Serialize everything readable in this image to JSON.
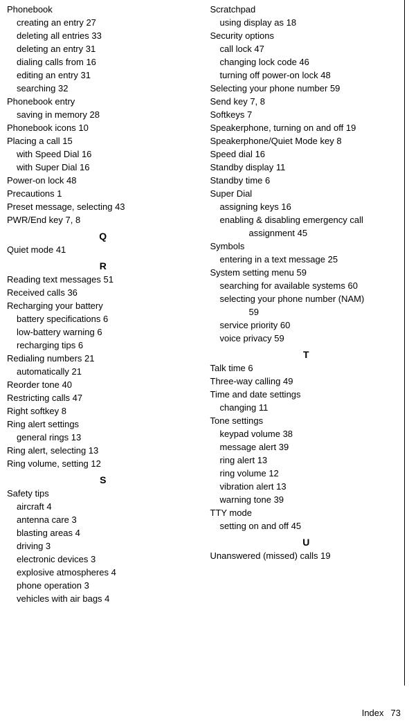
{
  "footer": {
    "label": "Index",
    "page": "73"
  },
  "left": [
    {
      "cls": "main",
      "text": "Phonebook"
    },
    {
      "cls": "sub",
      "label": "creating an entry",
      "pg": "27"
    },
    {
      "cls": "sub",
      "label": "deleting all entries",
      "pg": "33"
    },
    {
      "cls": "sub",
      "label": "deleting an entry",
      "pg": "31"
    },
    {
      "cls": "sub",
      "label": "dialing calls from",
      "pg": "16"
    },
    {
      "cls": "sub",
      "label": "editing an entry",
      "pg": "31"
    },
    {
      "cls": "sub",
      "label": "searching",
      "pg": "32"
    },
    {
      "cls": "main",
      "text": "Phonebook entry"
    },
    {
      "cls": "sub",
      "label": "saving in memory",
      "pg": "28"
    },
    {
      "cls": "main",
      "label": "Phonebook icons",
      "pg": "10"
    },
    {
      "cls": "main",
      "label": "Placing a call",
      "pg": "15"
    },
    {
      "cls": "sub",
      "label": "with Speed Dial",
      "pg": "16"
    },
    {
      "cls": "sub",
      "label": "with Super Dial",
      "pg": "16"
    },
    {
      "cls": "main",
      "label": "Power-on lock",
      "pg": "48"
    },
    {
      "cls": "main",
      "label": "Precautions",
      "pg": "1"
    },
    {
      "cls": "main",
      "label": "Preset message, selecting",
      "pg": "43"
    },
    {
      "cls": "main",
      "label": "PWR/End key",
      "pg": "7, 8"
    },
    {
      "cls": "letter",
      "text": "Q"
    },
    {
      "cls": "main",
      "label": "Quiet mode",
      "pg": "41"
    },
    {
      "cls": "letter",
      "text": "R"
    },
    {
      "cls": "main",
      "label": "Reading text messages",
      "pg": "51"
    },
    {
      "cls": "main",
      "label": "Received calls",
      "pg": "36"
    },
    {
      "cls": "main",
      "text": "Recharging your battery"
    },
    {
      "cls": "sub",
      "label": "battery specifications",
      "pg": "6"
    },
    {
      "cls": "sub",
      "label": "low-battery warning",
      "pg": "6"
    },
    {
      "cls": "sub",
      "label": "recharging tips",
      "pg": "6"
    },
    {
      "cls": "main",
      "label": "Redialing numbers",
      "pg": "21"
    },
    {
      "cls": "sub",
      "label": "automatically",
      "pg": "21"
    },
    {
      "cls": "main",
      "label": "Reorder tone",
      "pg": "40"
    },
    {
      "cls": "main",
      "label": "Restricting calls",
      "pg": "47"
    },
    {
      "cls": "main",
      "label": "Right softkey",
      "pg": "8"
    },
    {
      "cls": "main",
      "text": "Ring alert settings"
    },
    {
      "cls": "sub",
      "label": "general rings",
      "pg": "13"
    },
    {
      "cls": "main",
      "label": "Ring alert, selecting",
      "pg": "13"
    },
    {
      "cls": "main",
      "label": "Ring volume, setting",
      "pg": "12"
    },
    {
      "cls": "letter",
      "text": "S"
    },
    {
      "cls": "main",
      "text": "Safety tips"
    },
    {
      "cls": "sub",
      "label": "aircraft",
      "pg": "4"
    },
    {
      "cls": "sub",
      "label": "antenna care",
      "pg": "3"
    },
    {
      "cls": "sub",
      "label": "blasting areas",
      "pg": "4"
    },
    {
      "cls": "sub",
      "label": "driving",
      "pg": "3"
    },
    {
      "cls": "sub",
      "label": "electronic devices",
      "pg": "3"
    },
    {
      "cls": "sub",
      "label": "explosive atmospheres",
      "pg": "4"
    },
    {
      "cls": "sub",
      "label": "phone operation",
      "pg": "3"
    },
    {
      "cls": "sub",
      "label": "vehicles with air bags",
      "pg": "4"
    }
  ],
  "right": [
    {
      "cls": "main",
      "text": "Scratchpad"
    },
    {
      "cls": "sub",
      "label": "using display as",
      "pg": "18"
    },
    {
      "cls": "main",
      "text": "Security options"
    },
    {
      "cls": "sub",
      "label": "call lock",
      "pg": "47"
    },
    {
      "cls": "sub",
      "label": "changing lock code",
      "pg": "46"
    },
    {
      "cls": "sub",
      "label": "turning off power-on lock",
      "pg": "48"
    },
    {
      "cls": "main",
      "label": "Selecting your phone number",
      "pg": "59"
    },
    {
      "cls": "main",
      "label": "Send key",
      "pg": "7, 8"
    },
    {
      "cls": "main",
      "label": "Softkeys",
      "pg": "7"
    },
    {
      "cls": "main",
      "label": "Speakerphone, turning on and off",
      "pg": "19"
    },
    {
      "cls": "main",
      "label": "Speakerphone/Quiet Mode key",
      "pg": "8"
    },
    {
      "cls": "main",
      "label": "Speed dial",
      "pg": "16"
    },
    {
      "cls": "main",
      "label": "Standby display",
      "pg": "11"
    },
    {
      "cls": "main",
      "label": "Standby time",
      "pg": "6"
    },
    {
      "cls": "main",
      "text": "Super Dial"
    },
    {
      "cls": "sub",
      "label": "assigning keys",
      "pg": "16"
    },
    {
      "cls": "sub",
      "text": "enabling & disabling emergency call"
    },
    {
      "cls": "subsub",
      "label": "assignment",
      "pg": "45"
    },
    {
      "cls": "main",
      "text": "Symbols"
    },
    {
      "cls": "sub",
      "label": "entering in a text message",
      "pg": "25"
    },
    {
      "cls": "main",
      "label": "System setting menu",
      "pg": "59"
    },
    {
      "cls": "sub",
      "label": "searching for available systems",
      "pg": "60"
    },
    {
      "cls": "sub",
      "text": "selecting your phone number (NAM)"
    },
    {
      "cls": "subsub",
      "text": "59"
    },
    {
      "cls": "sub",
      "label": "service priority",
      "pg": "60"
    },
    {
      "cls": "sub",
      "label": "voice privacy",
      "pg": "59"
    },
    {
      "cls": "letter",
      "text": "T"
    },
    {
      "cls": "main",
      "label": "Talk time",
      "pg": "6"
    },
    {
      "cls": "main",
      "label": "Three-way calling",
      "pg": "49"
    },
    {
      "cls": "main",
      "text": "Time and date settings"
    },
    {
      "cls": "sub",
      "label": "changing",
      "pg": "11"
    },
    {
      "cls": "main",
      "text": "Tone settings"
    },
    {
      "cls": "sub",
      "label": "keypad volume",
      "pg": "38"
    },
    {
      "cls": "sub",
      "label": "message alert",
      "pg": "39"
    },
    {
      "cls": "sub",
      "label": "ring alert",
      "pg": "13"
    },
    {
      "cls": "sub",
      "label": "ring volume",
      "pg": "12"
    },
    {
      "cls": "sub",
      "label": "vibration alert",
      "pg": "13"
    },
    {
      "cls": "sub",
      "label": "warning tone",
      "pg": "39"
    },
    {
      "cls": "main",
      "text": "TTY mode"
    },
    {
      "cls": "sub",
      "label": "setting on and off",
      "pg": "45"
    },
    {
      "cls": "letter",
      "text": "U"
    },
    {
      "cls": "main",
      "label": "Unanswered (missed) calls",
      "pg": "19"
    }
  ]
}
